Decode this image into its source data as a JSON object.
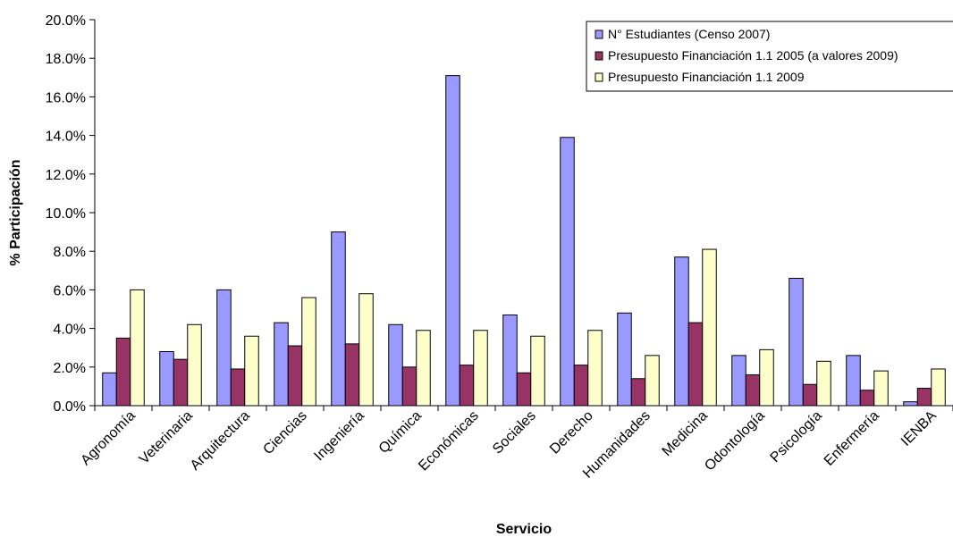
{
  "chart_data": {
    "type": "bar",
    "title": "",
    "xlabel": "Servicio",
    "ylabel": "% Participación",
    "ylim": [
      0,
      20
    ],
    "ytick_format": "%",
    "yticks": [
      "0.0%",
      "2.0%",
      "4.0%",
      "6.0%",
      "8.0%",
      "10.0%",
      "12.0%",
      "14.0%",
      "16.0%",
      "18.0%",
      "20.0%"
    ],
    "grid": false,
    "legend_position": "top-right",
    "categories": [
      "Agronomía",
      "Veterinaria",
      "Arquitectura",
      "Ciencias",
      "Ingeniería",
      "Química",
      "Económicas",
      "Sociales",
      "Derecho",
      "Humanidades",
      "Medicina",
      "Odontología",
      "Psicología",
      "Enfermería",
      "IENBA"
    ],
    "series": [
      {
        "name": "N° Estudiantes (Censo 2007)",
        "color": "#9999ff",
        "values": [
          1.7,
          2.8,
          6.0,
          4.3,
          9.0,
          4.2,
          17.1,
          4.7,
          13.9,
          4.8,
          7.7,
          2.6,
          6.6,
          2.6,
          0.2
        ]
      },
      {
        "name": "Presupuesto Financiación 1.1 2005 (a valores 2009)",
        "color": "#993366",
        "values": [
          3.5,
          2.4,
          1.9,
          3.1,
          3.2,
          2.0,
          2.1,
          1.7,
          2.1,
          1.4,
          4.3,
          1.6,
          1.1,
          0.8,
          0.9
        ]
      },
      {
        "name": "Presupuesto Financiación 1.1 2009",
        "color": "#ffffcc",
        "values": [
          6.0,
          4.2,
          3.6,
          5.6,
          5.8,
          3.9,
          3.9,
          3.6,
          3.9,
          2.6,
          8.1,
          2.9,
          2.3,
          1.8,
          1.9
        ]
      }
    ]
  }
}
